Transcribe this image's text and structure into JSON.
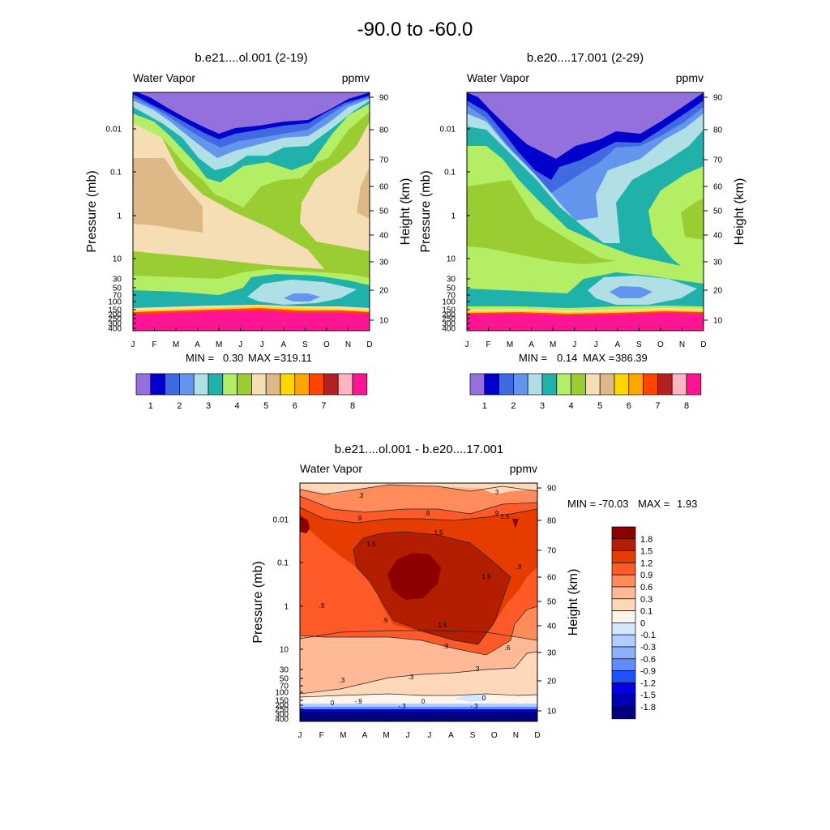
{
  "page": {
    "title": "-90.0 to -60.0"
  },
  "colors": {
    "top_palette": [
      "#9370DB",
      "#0000CD",
      "#4169E1",
      "#6495ED",
      "#B0E0E6",
      "#20B2AA",
      "#B4EE64",
      "#9ACD32",
      "#F5DEB3",
      "#DEB887",
      "#FFD700",
      "#FFA500",
      "#FF4500",
      "#B22222",
      "#FFB6C1",
      "#FF1493"
    ],
    "diff_palette": [
      "#000080",
      "#0000B4",
      "#0000E6",
      "#2050FF",
      "#5F8CFF",
      "#8CAFFF",
      "#B4CDFF",
      "#D7E6FF",
      "#FFF5EB",
      "#FFD7B9",
      "#FFB996",
      "#FF8C5A",
      "#FF5A28",
      "#E63C00",
      "#B41E00",
      "#8C0000"
    ]
  },
  "chart_data": [
    {
      "type": "heatmap",
      "panel": "left",
      "title": "b.e21....ol.001 (2-19)",
      "left_label": "Water Vapor",
      "right_label": "ppmv",
      "ylabel": "Pressure (mb)",
      "ylabel_right": "Height (km)",
      "x_ticks": [
        "J",
        "F",
        "M",
        "A",
        "M",
        "J",
        "J",
        "A",
        "S",
        "O",
        "N",
        "D"
      ],
      "pressure_ticks": [
        "0.01",
        "0.1",
        "1",
        "10",
        "30",
        "50",
        "70",
        "100",
        "150",
        "200",
        "250",
        "300",
        "400"
      ],
      "height_ticks": [
        "90",
        "80",
        "70",
        "60",
        "50",
        "40",
        "30",
        "20",
        "10"
      ],
      "min_label": "MIN =",
      "min_value": "0.30",
      "max_label": "MAX =",
      "max_value": "319.11",
      "colorbar_labels": [
        "1",
        "2",
        "3",
        "4",
        "5",
        "6",
        "7",
        "8"
      ]
    },
    {
      "type": "heatmap",
      "panel": "right",
      "title": "b.e20....17.001 (2-29)",
      "left_label": "Water Vapor",
      "right_label": "ppmv",
      "ylabel": "Pressure (mb)",
      "ylabel_right": "Height (km)",
      "x_ticks": [
        "J",
        "F",
        "M",
        "A",
        "M",
        "J",
        "J",
        "A",
        "S",
        "O",
        "N",
        "D"
      ],
      "pressure_ticks": [
        "0.01",
        "0.1",
        "1",
        "10",
        "30",
        "50",
        "70",
        "100",
        "150",
        "200",
        "250",
        "300",
        "400"
      ],
      "height_ticks": [
        "90",
        "80",
        "70",
        "60",
        "50",
        "40",
        "30",
        "20",
        "10"
      ],
      "min_label": "MIN =",
      "min_value": "0.14",
      "max_label": "MAX =",
      "max_value": "386.39",
      "colorbar_labels": [
        "1",
        "2",
        "3",
        "4",
        "5",
        "6",
        "7",
        "8"
      ]
    },
    {
      "type": "heatmap",
      "panel": "difference",
      "title": "b.e21....ol.001 - b.e20....17.001",
      "left_label": "Water Vapor",
      "right_label": "ppmv",
      "ylabel": "Pressure (mb)",
      "ylabel_right": "Height (km)",
      "x_ticks": [
        "J",
        "F",
        "M",
        "A",
        "M",
        "J",
        "J",
        "A",
        "S",
        "O",
        "N",
        "D"
      ],
      "pressure_ticks": [
        "0.01",
        "0.1",
        "1",
        "10",
        "30",
        "50",
        "70",
        "100",
        "150",
        "200",
        "250",
        "300",
        "400"
      ],
      "height_ticks": [
        "90",
        "80",
        "70",
        "60",
        "50",
        "40",
        "30",
        "20",
        "10"
      ],
      "min_label": "MIN = -70.03",
      "max_label": "MAX =",
      "max_value": "1.93",
      "colorbar_labels": [
        "1.8",
        "1.5",
        "1.2",
        "0.9",
        "0.6",
        "0.3",
        "0.1",
        "0",
        "-0.1",
        "-0.3",
        "-0.6",
        "-0.9",
        "-1.2",
        "-1.5",
        "-1.8"
      ],
      "contour_labels": [
        ".3",
        ".3",
        ".9",
        ".9",
        ".9",
        "1.5",
        "1.5",
        "1.5",
        "1.5",
        ".9",
        "1.5",
        ".9",
        ".9",
        ".9",
        ".6",
        ".3",
        ".3",
        ".3",
        "0",
        "0",
        "-.3",
        "-.3",
        "-.9",
        "0"
      ]
    }
  ]
}
